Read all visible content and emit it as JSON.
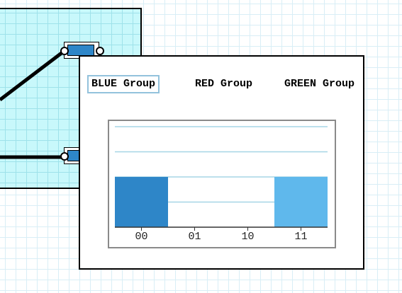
{
  "tabs": [
    {
      "label": "BLUE Group",
      "active": true
    },
    {
      "label": "RED Group",
      "active": false
    },
    {
      "label": "GREEN Group",
      "active": false
    }
  ],
  "chart_data": {
    "type": "bar",
    "categories": [
      "00",
      "01",
      "10",
      "11"
    ],
    "values": [
      2,
      0,
      0,
      2
    ],
    "ylim": [
      0,
      4
    ],
    "grid": true,
    "colors": [
      "#2e86c8",
      "#2e86c8",
      "#5fb8ec",
      "#5fb8ec"
    ]
  },
  "colors": {
    "panel": "#c8f8fb",
    "gridline": "#a6d6e6",
    "node": "#2e86c8"
  }
}
